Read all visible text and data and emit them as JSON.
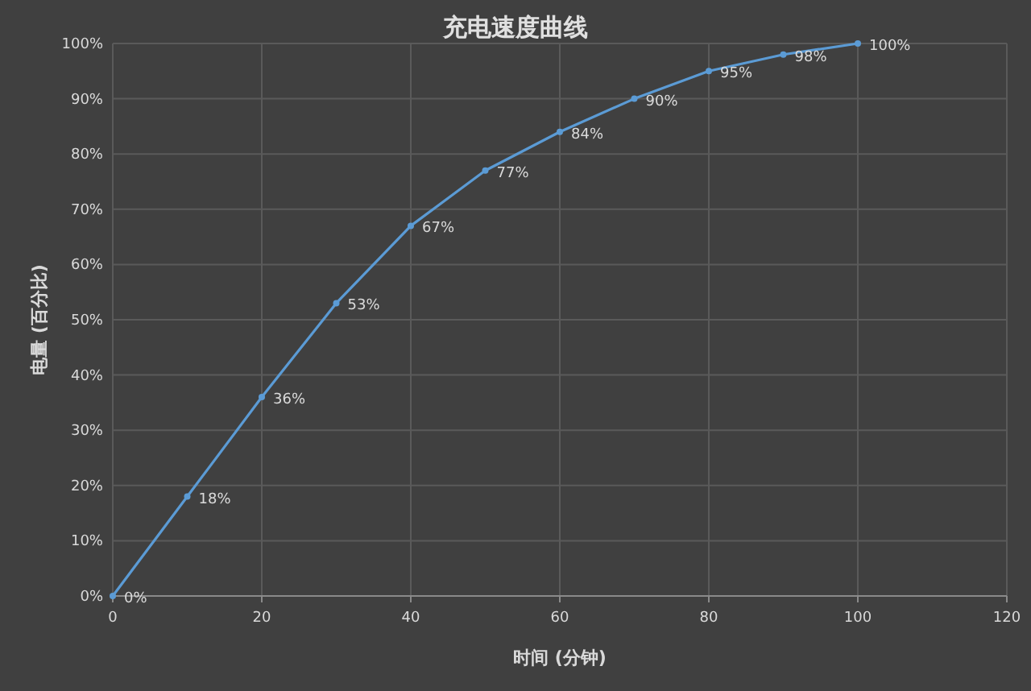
{
  "chart_data": {
    "type": "line",
    "title": "充电速度曲线",
    "xlabel": "时间 (分钟)",
    "ylabel": "电量 (百分比)",
    "x": [
      0,
      10,
      20,
      30,
      40,
      50,
      60,
      70,
      80,
      90,
      100
    ],
    "series": [
      {
        "color": "#5b9bd5",
        "values": [
          0,
          18,
          36,
          53,
          67,
          77,
          84,
          90,
          95,
          98,
          100
        ],
        "value_labels": [
          "0%",
          "18%",
          "36%",
          "53%",
          "67%",
          "77%",
          "84%",
          "90%",
          "95%",
          "98%",
          "100%"
        ]
      }
    ],
    "xlim": [
      0,
      120
    ],
    "xticks": [
      0,
      20,
      40,
      60,
      80,
      100,
      120
    ],
    "ylim": [
      0,
      100
    ],
    "yticks": [
      {
        "value": 0,
        "label": "0%"
      },
      {
        "value": 10,
        "label": "10%"
      },
      {
        "value": 20,
        "label": "20%"
      },
      {
        "value": 30,
        "label": "30%"
      },
      {
        "value": 40,
        "label": "40%"
      },
      {
        "value": 50,
        "label": "50%"
      },
      {
        "value": 60,
        "label": "60%"
      },
      {
        "value": 70,
        "label": "70%"
      },
      {
        "value": 80,
        "label": "80%"
      },
      {
        "value": 90,
        "label": "90%"
      },
      {
        "value": 100,
        "label": "100%"
      }
    ],
    "grid": true,
    "marker": "circle",
    "line_style": "solid"
  }
}
